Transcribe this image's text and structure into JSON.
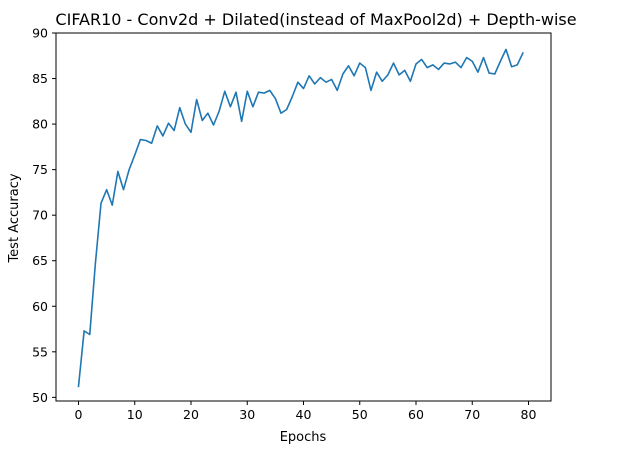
{
  "chart_data": {
    "type": "line",
    "title": "CIFAR10 - Conv2d + Dilated(instead of MaxPool2d) + Depth-wise",
    "xlabel": "Epochs",
    "ylabel": "Test Accuracy",
    "xlim": [
      -4,
      84
    ],
    "ylim": [
      49.6,
      90
    ],
    "xticks": [
      0,
      10,
      20,
      30,
      40,
      50,
      60,
      70,
      80
    ],
    "yticks": [
      50,
      55,
      60,
      65,
      70,
      75,
      80,
      85,
      90
    ],
    "grid": false,
    "line_color": "#1f77b4",
    "series": [
      {
        "x": [
          0,
          1,
          2,
          3,
          4,
          5,
          6,
          7,
          8,
          9,
          10,
          11,
          12,
          13,
          14,
          15,
          16,
          17,
          18,
          19,
          20,
          21,
          22,
          23,
          24,
          25,
          26,
          27,
          28,
          29,
          30,
          31,
          32,
          33,
          34,
          35,
          36,
          37,
          38,
          39,
          40,
          41,
          42,
          43,
          44,
          45,
          46,
          47,
          48,
          49,
          50,
          51,
          52,
          53,
          54,
          55,
          56,
          57,
          58,
          59,
          60,
          61,
          62,
          63,
          64,
          65,
          66,
          67,
          68,
          69,
          70,
          71,
          72,
          73,
          74,
          75,
          76,
          77,
          78,
          79
        ],
        "values": [
          51.2,
          57.3,
          56.9,
          64.7,
          71.3,
          72.8,
          71.1,
          74.8,
          72.8,
          75.0,
          76.6,
          78.3,
          78.2,
          77.9,
          79.8,
          78.7,
          80.1,
          79.3,
          81.8,
          80.0,
          79.1,
          82.7,
          80.4,
          81.2,
          79.9,
          81.4,
          83.6,
          81.9,
          83.5,
          80.3,
          83.6,
          81.9,
          83.5,
          83.4,
          83.7,
          82.8,
          81.2,
          81.6,
          83.0,
          84.6,
          83.9,
          85.3,
          84.4,
          85.1,
          84.6,
          84.9,
          83.7,
          85.5,
          86.4,
          85.3,
          86.7,
          86.2,
          83.7,
          85.7,
          84.7,
          85.4,
          86.7,
          85.4,
          85.9,
          84.7,
          86.6,
          87.1,
          86.2,
          86.5,
          86.0,
          86.7,
          86.6,
          86.8,
          86.2,
          87.3,
          86.9,
          85.7,
          87.3,
          85.6,
          85.5,
          86.9,
          88.2,
          86.3,
          86.5,
          87.8
        ]
      }
    ]
  }
}
